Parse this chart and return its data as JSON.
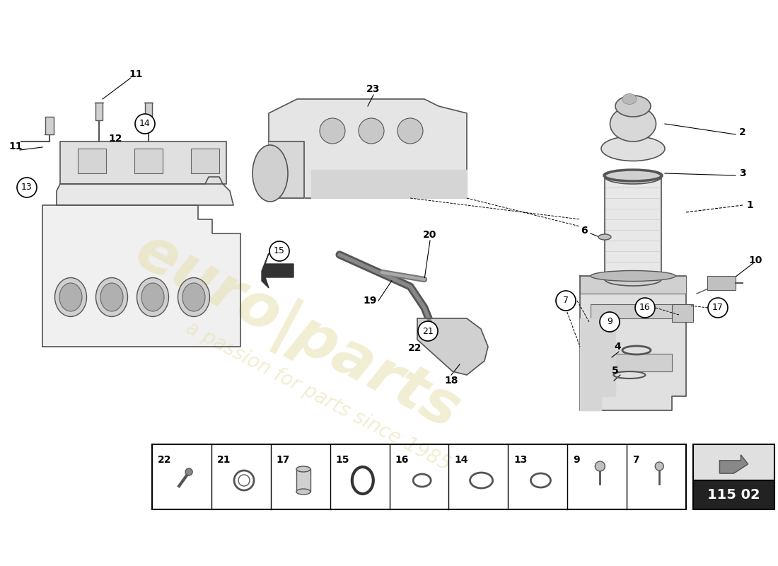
{
  "title": "",
  "background_color": "#ffffff",
  "watermark_text": "euro|parts",
  "watermark_subtext": "a passion for parts since 1985",
  "part_number": "115 02",
  "legend_items": [
    {
      "num": "22",
      "shape": "bolt_angled"
    },
    {
      "num": "21",
      "shape": "ring_small"
    },
    {
      "num": "17",
      "shape": "filter_small"
    },
    {
      "num": "15",
      "shape": "ring_large"
    },
    {
      "num": "16",
      "shape": "oval_medium"
    },
    {
      "num": "14",
      "shape": "oval_large"
    },
    {
      "num": "13",
      "shape": "ring_medium"
    },
    {
      "num": "9",
      "shape": "bolt_vertical"
    },
    {
      "num": "7",
      "shape": "bolt_small"
    }
  ]
}
